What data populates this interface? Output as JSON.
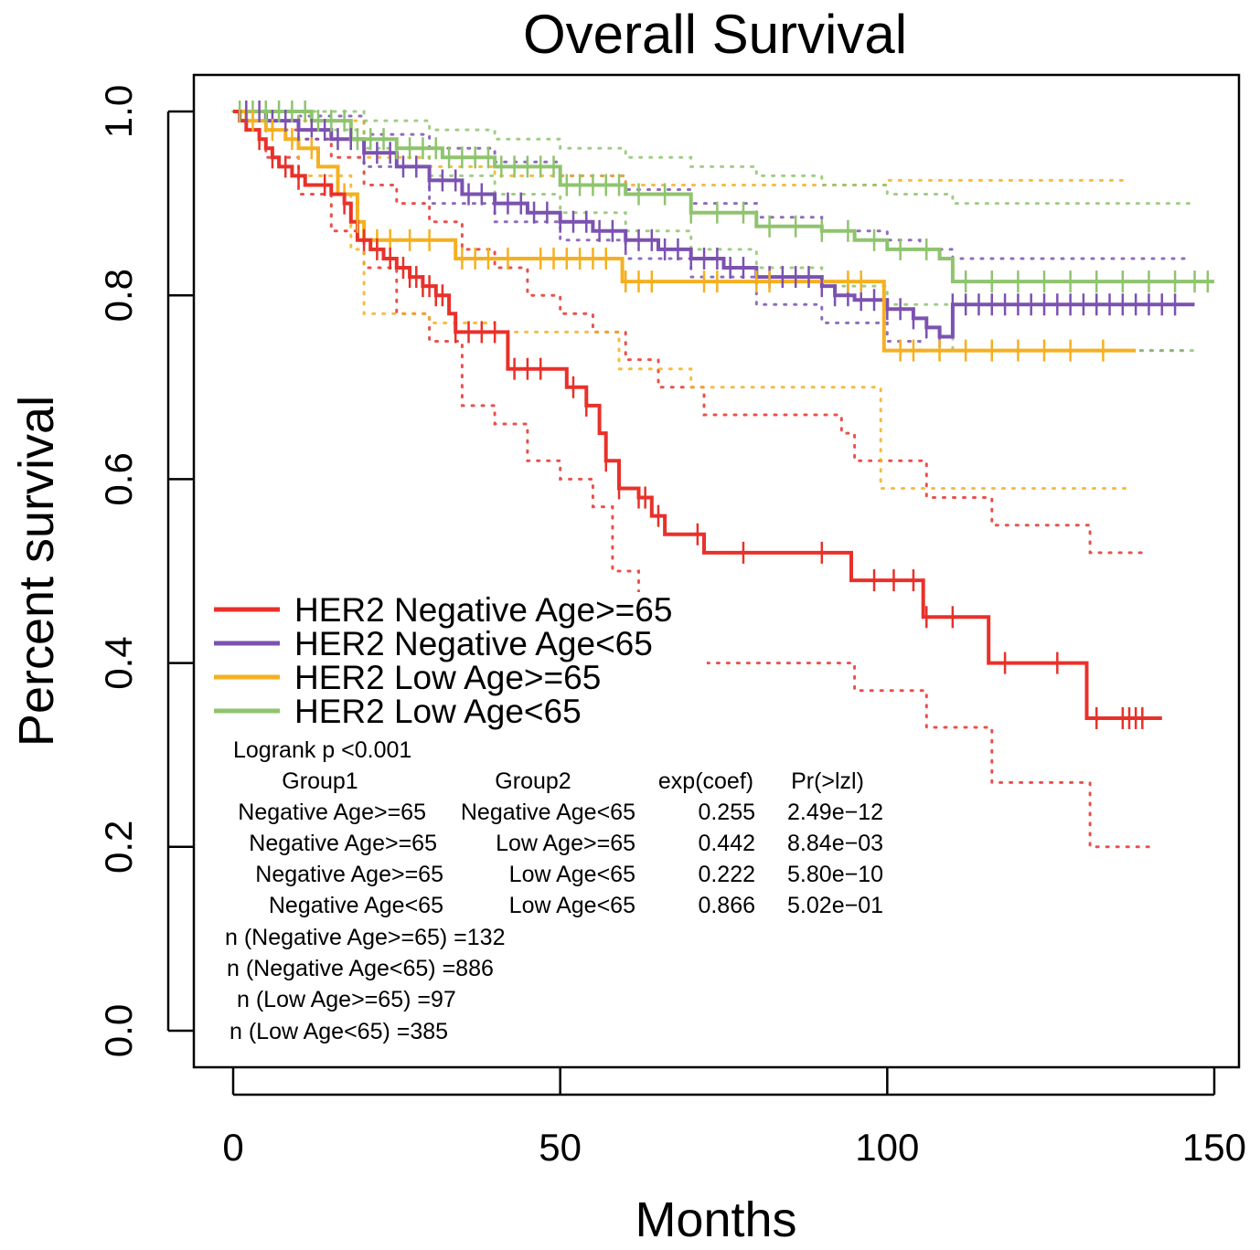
{
  "chart_data": {
    "type": "line",
    "subtype": "kaplan-meier",
    "title": "Overall Survival",
    "xlabel": "Months",
    "ylabel": "Percent survival",
    "xlim": [
      0,
      150
    ],
    "ylim": [
      0,
      1.0
    ],
    "x_ticks": [
      "0",
      "50",
      "100",
      "150"
    ],
    "y_ticks": [
      "0.0",
      "0.2",
      "0.4",
      "0.6",
      "0.8",
      "1.0"
    ],
    "grid": false,
    "legend_position": "lower-left",
    "series": [
      {
        "name": "HER2 Negative Age>=65",
        "color": "#e8312a",
        "step": [
          [
            0,
            1.0
          ],
          [
            1,
            0.99
          ],
          [
            2,
            0.98
          ],
          [
            4,
            0.97
          ],
          [
            5,
            0.96
          ],
          [
            6,
            0.95
          ],
          [
            7,
            0.94
          ],
          [
            9,
            0.93
          ],
          [
            11,
            0.92
          ],
          [
            13,
            0.92
          ],
          [
            15,
            0.91
          ],
          [
            17,
            0.9
          ],
          [
            18,
            0.88
          ],
          [
            19,
            0.86
          ],
          [
            21,
            0.85
          ],
          [
            23,
            0.84
          ],
          [
            25,
            0.83
          ],
          [
            27,
            0.82
          ],
          [
            29,
            0.81
          ],
          [
            31,
            0.8
          ],
          [
            33,
            0.78
          ],
          [
            34,
            0.76
          ],
          [
            37,
            0.76
          ],
          [
            42,
            0.72
          ],
          [
            50,
            0.72
          ],
          [
            51,
            0.7
          ],
          [
            54,
            0.68
          ],
          [
            56,
            0.65
          ],
          [
            57,
            0.62
          ],
          [
            59,
            0.59
          ],
          [
            62,
            0.58
          ],
          [
            64,
            0.56
          ],
          [
            66,
            0.54
          ],
          [
            72,
            0.52
          ],
          [
            94,
            0.52
          ],
          [
            94.5,
            0.49
          ],
          [
            105,
            0.49
          ],
          [
            105.5,
            0.45
          ],
          [
            115,
            0.45
          ],
          [
            115.5,
            0.4
          ],
          [
            130,
            0.4
          ],
          [
            130.5,
            0.34
          ],
          [
            142,
            0.34
          ]
        ],
        "upper": [
          [
            0,
            1.0
          ],
          [
            5,
            0.98
          ],
          [
            10,
            0.97
          ],
          [
            15,
            0.95
          ],
          [
            20,
            0.92
          ],
          [
            25,
            0.9
          ],
          [
            30,
            0.88
          ],
          [
            35,
            0.85
          ],
          [
            40,
            0.83
          ],
          [
            45,
            0.8
          ],
          [
            50,
            0.78
          ],
          [
            55,
            0.76
          ],
          [
            60,
            0.73
          ],
          [
            65,
            0.7
          ],
          [
            72,
            0.67
          ],
          [
            85,
            0.67
          ],
          [
            93,
            0.65
          ],
          [
            95,
            0.62
          ],
          [
            105,
            0.62
          ],
          [
            106,
            0.58
          ],
          [
            115,
            0.58
          ],
          [
            116,
            0.55
          ],
          [
            130,
            0.55
          ],
          [
            131,
            0.52
          ],
          [
            140,
            0.52
          ]
        ],
        "lower": [
          [
            0,
            1.0
          ],
          [
            5,
            0.95
          ],
          [
            10,
            0.91
          ],
          [
            15,
            0.87
          ],
          [
            20,
            0.83
          ],
          [
            25,
            0.78
          ],
          [
            30,
            0.75
          ],
          [
            35,
            0.68
          ],
          [
            40,
            0.66
          ],
          [
            45,
            0.62
          ],
          [
            50,
            0.6
          ],
          [
            55,
            0.57
          ],
          [
            58,
            0.5
          ],
          [
            62,
            0.47
          ],
          [
            66,
            0.45
          ],
          [
            70,
            0.43
          ],
          [
            72,
            0.4
          ],
          [
            94,
            0.4
          ],
          [
            95,
            0.37
          ],
          [
            105,
            0.37
          ],
          [
            106,
            0.33
          ],
          [
            115,
            0.33
          ],
          [
            116,
            0.27
          ],
          [
            130,
            0.27
          ],
          [
            131,
            0.2
          ],
          [
            140,
            0.2
          ]
        ],
        "censor": [
          4,
          6,
          8,
          10,
          14,
          17,
          20,
          22,
          24,
          26,
          27,
          28,
          29,
          30,
          31,
          32,
          34,
          36,
          38,
          40,
          43,
          45,
          47,
          52,
          54,
          57,
          59,
          62,
          63,
          65,
          71,
          78,
          90,
          98,
          101,
          104,
          106,
          110,
          118,
          126,
          132,
          136,
          137,
          138,
          139
        ]
      },
      {
        "name": "HER2 Negative Age<65",
        "color": "#7b52b0",
        "step": [
          [
            0,
            1.0
          ],
          [
            5,
            0.99
          ],
          [
            10,
            0.98
          ],
          [
            15,
            0.97
          ],
          [
            20,
            0.955
          ],
          [
            25,
            0.94
          ],
          [
            30,
            0.925
          ],
          [
            35,
            0.91
          ],
          [
            40,
            0.9
          ],
          [
            45,
            0.89
          ],
          [
            50,
            0.88
          ],
          [
            55,
            0.87
          ],
          [
            60,
            0.86
          ],
          [
            65,
            0.85
          ],
          [
            70,
            0.84
          ],
          [
            75,
            0.83
          ],
          [
            80,
            0.82
          ],
          [
            88,
            0.82
          ],
          [
            90,
            0.81
          ],
          [
            92,
            0.8
          ],
          [
            95,
            0.795
          ],
          [
            100,
            0.785
          ],
          [
            104,
            0.775
          ],
          [
            106,
            0.765
          ],
          [
            108,
            0.755
          ],
          [
            110,
            0.79
          ],
          [
            147,
            0.79
          ]
        ],
        "upper": [
          [
            0,
            1.0
          ],
          [
            10,
            0.995
          ],
          [
            20,
            0.975
          ],
          [
            30,
            0.96
          ],
          [
            40,
            0.945
          ],
          [
            50,
            0.93
          ],
          [
            60,
            0.915
          ],
          [
            70,
            0.9
          ],
          [
            80,
            0.885
          ],
          [
            90,
            0.87
          ],
          [
            100,
            0.86
          ],
          [
            105,
            0.85
          ],
          [
            110,
            0.84
          ],
          [
            146,
            0.84
          ]
        ],
        "lower": [
          [
            0,
            1.0
          ],
          [
            10,
            0.97
          ],
          [
            20,
            0.94
          ],
          [
            30,
            0.9
          ],
          [
            40,
            0.88
          ],
          [
            50,
            0.86
          ],
          [
            60,
            0.84
          ],
          [
            70,
            0.82
          ],
          [
            80,
            0.79
          ],
          [
            90,
            0.77
          ],
          [
            100,
            0.75
          ],
          [
            105,
            0.74
          ],
          [
            110,
            0.74
          ],
          [
            146,
            0.74
          ]
        ],
        "censor": [
          2,
          4,
          6,
          8,
          10,
          12,
          14,
          16,
          18,
          20,
          22,
          24,
          26,
          28,
          30,
          32,
          34,
          36,
          38,
          40,
          42,
          44,
          46,
          48,
          50,
          52,
          54,
          56,
          58,
          60,
          62,
          64,
          66,
          68,
          70,
          72,
          74,
          76,
          78,
          80,
          82,
          84,
          86,
          88,
          90,
          92,
          94,
          96,
          98,
          100,
          102,
          104,
          106,
          108,
          110,
          112,
          114,
          116,
          118,
          120,
          122,
          124,
          126,
          128,
          130,
          132,
          134,
          136,
          138,
          140,
          142,
          144
        ]
      },
      {
        "name": "HER2 Low Age>=65",
        "color": "#f5b020",
        "step": [
          [
            0,
            1.0
          ],
          [
            2,
            0.99
          ],
          [
            5,
            0.98
          ],
          [
            8,
            0.97
          ],
          [
            10,
            0.96
          ],
          [
            13,
            0.94
          ],
          [
            16,
            0.91
          ],
          [
            19,
            0.88
          ],
          [
            20,
            0.86
          ],
          [
            25,
            0.86
          ],
          [
            33,
            0.86
          ],
          [
            34,
            0.84
          ],
          [
            59,
            0.84
          ],
          [
            59.5,
            0.815
          ],
          [
            99,
            0.815
          ],
          [
            99.5,
            0.74
          ],
          [
            138,
            0.74
          ]
        ],
        "upper": [
          [
            0,
            1.0
          ],
          [
            10,
            0.99
          ],
          [
            20,
            0.95
          ],
          [
            30,
            0.94
          ],
          [
            40,
            0.93
          ],
          [
            50,
            0.93
          ],
          [
            60,
            0.92
          ],
          [
            70,
            0.92
          ],
          [
            99,
            0.92
          ],
          [
            100,
            0.925
          ],
          [
            137,
            0.925
          ]
        ],
        "lower": [
          [
            0,
            1.0
          ],
          [
            10,
            0.93
          ],
          [
            18,
            0.85
          ],
          [
            20,
            0.78
          ],
          [
            30,
            0.77
          ],
          [
            40,
            0.76
          ],
          [
            59,
            0.72
          ],
          [
            60,
            0.72
          ],
          [
            70,
            0.7
          ],
          [
            98,
            0.7
          ],
          [
            99,
            0.59
          ],
          [
            137,
            0.59
          ]
        ],
        "censor": [
          3,
          6,
          9,
          12,
          17,
          19,
          22,
          24,
          27,
          30,
          35,
          37,
          39,
          42,
          47,
          49,
          51,
          53,
          55,
          57,
          60,
          62,
          64,
          72,
          74,
          80,
          82,
          94,
          96,
          102,
          104,
          108,
          112,
          116,
          120,
          124,
          128,
          133
        ]
      },
      {
        "name": "HER2 Low Age<65",
        "color": "#8fc46e",
        "step": [
          [
            0,
            1.0
          ],
          [
            6,
            1.0
          ],
          [
            12,
            0.99
          ],
          [
            18,
            0.97
          ],
          [
            25,
            0.96
          ],
          [
            32,
            0.95
          ],
          [
            40,
            0.94
          ],
          [
            50,
            0.92
          ],
          [
            60,
            0.91
          ],
          [
            70,
            0.89
          ],
          [
            80,
            0.875
          ],
          [
            90,
            0.87
          ],
          [
            95,
            0.86
          ],
          [
            100,
            0.85
          ],
          [
            108,
            0.84
          ],
          [
            110,
            0.815
          ],
          [
            150,
            0.815
          ]
        ],
        "upper": [
          [
            0,
            1.0
          ],
          [
            10,
            1.0
          ],
          [
            20,
            0.99
          ],
          [
            30,
            0.98
          ],
          [
            40,
            0.97
          ],
          [
            50,
            0.96
          ],
          [
            60,
            0.95
          ],
          [
            70,
            0.94
          ],
          [
            80,
            0.93
          ],
          [
            90,
            0.92
          ],
          [
            100,
            0.91
          ],
          [
            110,
            0.9
          ],
          [
            147,
            0.9
          ]
        ],
        "lower": [
          [
            0,
            1.0
          ],
          [
            10,
            0.98
          ],
          [
            20,
            0.96
          ],
          [
            30,
            0.93
          ],
          [
            40,
            0.91
          ],
          [
            50,
            0.89
          ],
          [
            60,
            0.87
          ],
          [
            70,
            0.85
          ],
          [
            80,
            0.83
          ],
          [
            90,
            0.81
          ],
          [
            100,
            0.79
          ],
          [
            110,
            0.74
          ],
          [
            147,
            0.74
          ]
        ],
        "censor": [
          1,
          3,
          5,
          7,
          9,
          11,
          13,
          15,
          17,
          19,
          21,
          23,
          25,
          27,
          29,
          31,
          33,
          35,
          37,
          39,
          41,
          43,
          45,
          47,
          49,
          51,
          53,
          55,
          57,
          59,
          62,
          66,
          70,
          74,
          78,
          82,
          86,
          90,
          94,
          98,
          102,
          106,
          112,
          116,
          120,
          124,
          128,
          132,
          136,
          140,
          144,
          147,
          149
        ]
      }
    ],
    "annotations": {
      "logrank": "Logrank p <0.001",
      "table_headers": [
        "Group1",
        "Group2",
        "exp(coef)",
        "Pr(>lzl)"
      ],
      "table_rows": [
        [
          "Negative Age>=65",
          "Negative Age<65",
          "0.255",
          "2.49e−12"
        ],
        [
          "Negative Age>=65",
          "Low Age>=65",
          "0.442",
          "8.84e−03"
        ],
        [
          "Negative Age>=65",
          "Low Age<65",
          "0.222",
          "5.80e−10"
        ],
        [
          "Negative Age<65",
          "Low Age<65",
          "0.866",
          "5.02e−01"
        ]
      ],
      "n_lines": [
        "n (Negative Age>=65) =132",
        "n (Negative Age<65) =886",
        "n (Low Age>=65) =97",
        "n (Low Age<65) =385"
      ]
    }
  }
}
